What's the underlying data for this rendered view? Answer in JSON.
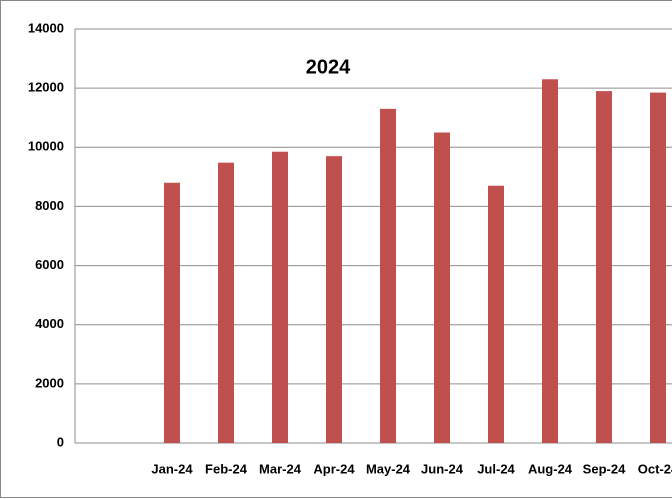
{
  "chart_data": {
    "type": "bar",
    "title": "2024",
    "categories": [
      null,
      "Jan-24",
      "Feb-24",
      "Mar-24",
      "Apr-24",
      "May-24",
      "Jun-24",
      "Jul-24",
      "Aug-24",
      "Sep-24",
      "Oct-24"
    ],
    "values": [
      null,
      8800,
      9480,
      9850,
      9700,
      11300,
      10500,
      8700,
      12300,
      11900,
      11850
    ],
    "color": "#c0504d",
    "ylim": [
      0,
      14000
    ],
    "yticks": [
      0,
      2000,
      4000,
      6000,
      8000,
      10000,
      12000,
      14000
    ],
    "grid": true
  }
}
